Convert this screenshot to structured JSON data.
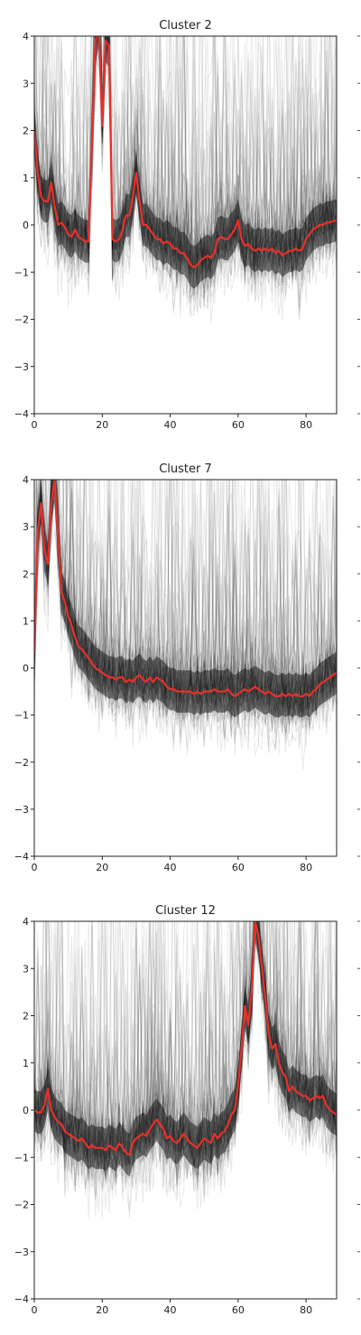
{
  "figure": {
    "background": "#ffffff",
    "clipped_right_edge": true
  },
  "chart_data": [
    {
      "type": "line",
      "title": "Cluster 2",
      "xlabel": "",
      "ylabel": "",
      "xlim": [
        0,
        89
      ],
      "ylim": [
        -4,
        4
      ],
      "xticks": [
        0,
        20,
        40,
        60,
        80
      ],
      "yticks": [
        -4,
        -3,
        -2,
        -1,
        0,
        1,
        2,
        3,
        4
      ],
      "grid": false,
      "background_traces": {
        "color": "#000000",
        "description": "many individual member traces, translucent black"
      },
      "series": [
        {
          "color": "#e8302a",
          "x": [
            0,
            1,
            2,
            3,
            4,
            5,
            6,
            7,
            8,
            9,
            10,
            11,
            12,
            13,
            14,
            15,
            16,
            17,
            18,
            19,
            20,
            21,
            22,
            23,
            24,
            25,
            26,
            27,
            28,
            29,
            30,
            31,
            32,
            33,
            34,
            35,
            36,
            37,
            38,
            39,
            40,
            41,
            42,
            43,
            44,
            45,
            46,
            47,
            48,
            49,
            50,
            51,
            52,
            53,
            54,
            55,
            56,
            57,
            58,
            59,
            60,
            61,
            62,
            63,
            64,
            65,
            66,
            67,
            68,
            69,
            70,
            71,
            72,
            73,
            74,
            75,
            76,
            77,
            78,
            79,
            80,
            81,
            82,
            83,
            84,
            85,
            86,
            87,
            88,
            89
          ],
          "values": [
            2.0,
            1.1,
            0.6,
            0.5,
            0.5,
            0.9,
            0.4,
            0.0,
            0.05,
            -0.05,
            -0.2,
            -0.25,
            -0.1,
            -0.25,
            -0.3,
            -0.35,
            -0.35,
            1.8,
            3.9,
            4.2,
            2.1,
            3.9,
            3.8,
            -0.3,
            -0.35,
            -0.3,
            -0.1,
            0.2,
            0.2,
            0.6,
            1.1,
            0.5,
            0.0,
            0.0,
            -0.1,
            -0.2,
            -0.3,
            -0.3,
            -0.4,
            -0.35,
            -0.4,
            -0.5,
            -0.5,
            -0.6,
            -0.6,
            -0.7,
            -0.85,
            -0.9,
            -0.85,
            -0.75,
            -0.7,
            -0.65,
            -0.7,
            -0.6,
            -0.3,
            -0.25,
            -0.3,
            -0.3,
            -0.2,
            -0.1,
            0.1,
            -0.3,
            -0.45,
            -0.4,
            -0.5,
            -0.55,
            -0.5,
            -0.55,
            -0.5,
            -0.55,
            -0.5,
            -0.6,
            -0.55,
            -0.65,
            -0.6,
            -0.55,
            -0.55,
            -0.5,
            -0.55,
            -0.5,
            -0.3,
            -0.2,
            -0.1,
            -0.05,
            0.0,
            0.0,
            0.05,
            0.05,
            0.08,
            0.1
          ]
        }
      ]
    },
    {
      "type": "line",
      "title": "Cluster 7",
      "xlabel": "",
      "ylabel": "",
      "xlim": [
        0,
        89
      ],
      "ylim": [
        -4,
        4
      ],
      "xticks": [
        0,
        20,
        40,
        60,
        80
      ],
      "yticks": [
        -4,
        -3,
        -2,
        -1,
        0,
        1,
        2,
        3,
        4
      ],
      "grid": false,
      "background_traces": {
        "color": "#000000",
        "description": "many individual member traces, translucent black"
      },
      "series": [
        {
          "color": "#e8302a",
          "x": [
            0,
            1,
            2,
            3,
            4,
            5,
            6,
            7,
            8,
            9,
            10,
            11,
            12,
            13,
            14,
            15,
            16,
            17,
            18,
            19,
            20,
            21,
            22,
            23,
            24,
            25,
            26,
            27,
            28,
            29,
            30,
            31,
            32,
            33,
            34,
            35,
            36,
            37,
            38,
            39,
            40,
            41,
            42,
            43,
            44,
            45,
            46,
            47,
            48,
            49,
            50,
            51,
            52,
            53,
            54,
            55,
            56,
            57,
            58,
            59,
            60,
            61,
            62,
            63,
            64,
            65,
            66,
            67,
            68,
            69,
            70,
            71,
            72,
            73,
            74,
            75,
            76,
            77,
            78,
            79,
            80,
            81,
            82,
            83,
            84,
            85,
            86,
            87,
            88,
            89
          ],
          "values": [
            0.3,
            2.9,
            3.5,
            2.5,
            2.2,
            3.5,
            4.0,
            2.8,
            1.6,
            1.4,
            1.1,
            0.9,
            0.65,
            0.45,
            0.4,
            0.3,
            0.2,
            0.1,
            0.0,
            -0.05,
            -0.1,
            -0.15,
            -0.2,
            -0.2,
            -0.25,
            -0.2,
            -0.2,
            -0.3,
            -0.25,
            -0.3,
            -0.2,
            -0.15,
            -0.25,
            -0.3,
            -0.2,
            -0.3,
            -0.2,
            -0.25,
            -0.3,
            -0.4,
            -0.45,
            -0.45,
            -0.5,
            -0.5,
            -0.5,
            -0.5,
            -0.5,
            -0.55,
            -0.5,
            -0.55,
            -0.5,
            -0.5,
            -0.5,
            -0.45,
            -0.5,
            -0.5,
            -0.5,
            -0.45,
            -0.55,
            -0.6,
            -0.55,
            -0.5,
            -0.45,
            -0.5,
            -0.45,
            -0.4,
            -0.45,
            -0.5,
            -0.55,
            -0.5,
            -0.55,
            -0.6,
            -0.6,
            -0.55,
            -0.6,
            -0.55,
            -0.6,
            -0.55,
            -0.6,
            -0.6,
            -0.55,
            -0.6,
            -0.5,
            -0.45,
            -0.35,
            -0.3,
            -0.25,
            -0.2,
            -0.15,
            -0.1
          ]
        }
      ]
    },
    {
      "type": "line",
      "title": "Cluster 12",
      "xlabel": "",
      "ylabel": "",
      "xlim": [
        0,
        89
      ],
      "ylim": [
        -4,
        4
      ],
      "xticks": [
        0,
        20,
        40,
        60,
        80
      ],
      "yticks": [
        -4,
        -3,
        -2,
        -1,
        0,
        1,
        2,
        3,
        4
      ],
      "grid": false,
      "background_traces": {
        "color": "#000000",
        "description": "many individual member traces, translucent black"
      },
      "series": [
        {
          "color": "#e8302a",
          "x": [
            0,
            1,
            2,
            3,
            4,
            5,
            6,
            7,
            8,
            9,
            10,
            11,
            12,
            13,
            14,
            15,
            16,
            17,
            18,
            19,
            20,
            21,
            22,
            23,
            24,
            25,
            26,
            27,
            28,
            29,
            30,
            31,
            32,
            33,
            34,
            35,
            36,
            37,
            38,
            39,
            40,
            41,
            42,
            43,
            44,
            45,
            46,
            47,
            48,
            49,
            50,
            51,
            52,
            53,
            54,
            55,
            56,
            57,
            58,
            59,
            60,
            61,
            62,
            63,
            64,
            65,
            66,
            67,
            68,
            69,
            70,
            71,
            72,
            73,
            74,
            75,
            76,
            77,
            78,
            79,
            80,
            81,
            82,
            83,
            84,
            85,
            86,
            87,
            88,
            89
          ],
          "values": [
            0.0,
            -0.05,
            -0.05,
            0.1,
            0.45,
            0.0,
            -0.15,
            -0.25,
            -0.3,
            -0.45,
            -0.5,
            -0.55,
            -0.6,
            -0.65,
            -0.6,
            -0.7,
            -0.8,
            -0.75,
            -0.8,
            -0.8,
            -0.8,
            -0.85,
            -0.75,
            -0.8,
            -0.85,
            -0.7,
            -0.8,
            -0.9,
            -0.95,
            -0.7,
            -0.6,
            -0.55,
            -0.5,
            -0.55,
            -0.4,
            -0.3,
            -0.2,
            -0.3,
            -0.4,
            -0.6,
            -0.55,
            -0.65,
            -0.7,
            -0.6,
            -0.5,
            -0.6,
            -0.7,
            -0.75,
            -0.8,
            -0.7,
            -0.6,
            -0.65,
            -0.7,
            -0.5,
            -0.6,
            -0.5,
            -0.45,
            -0.3,
            -0.1,
            0.0,
            0.5,
            1.3,
            2.2,
            1.8,
            2.5,
            4.0,
            3.7,
            3.0,
            2.4,
            1.6,
            1.3,
            1.4,
            1.0,
            0.8,
            0.7,
            0.4,
            0.5,
            0.4,
            0.35,
            0.3,
            0.3,
            0.2,
            0.25,
            0.3,
            0.25,
            0.3,
            0.1,
            0.0,
            -0.05,
            -0.1
          ]
        }
      ]
    }
  ]
}
